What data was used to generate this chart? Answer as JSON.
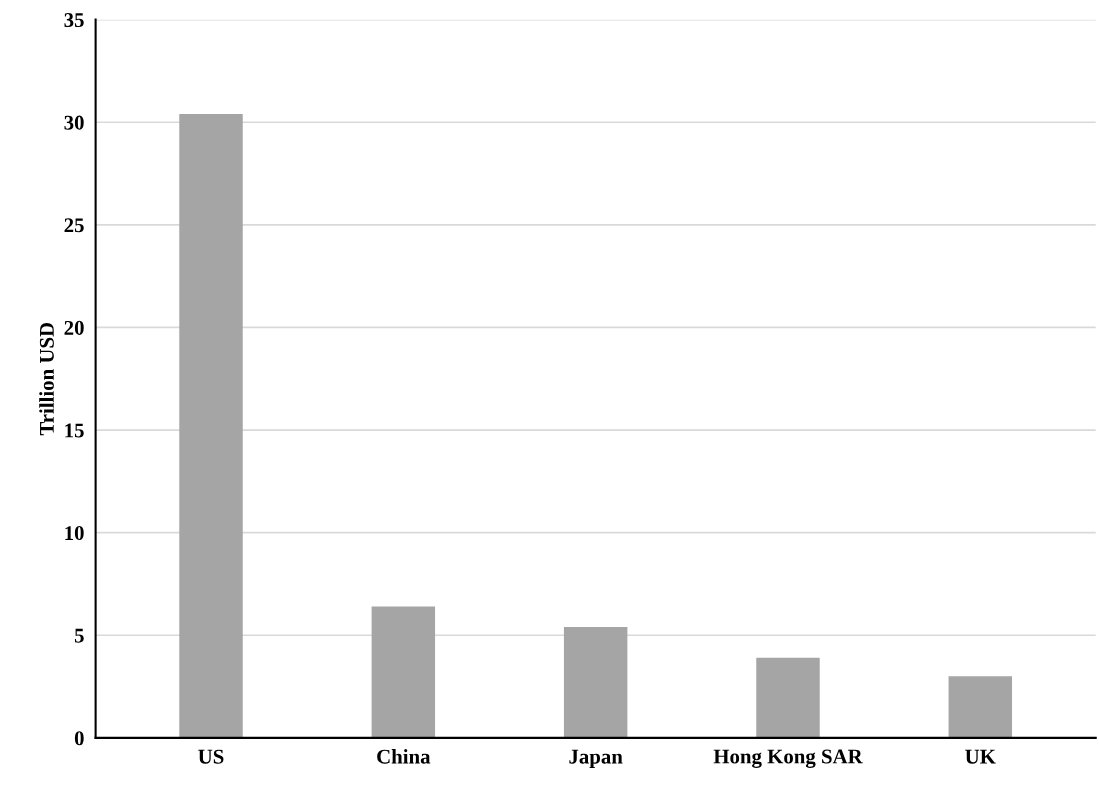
{
  "chart_data": {
    "type": "bar",
    "ylabel": "Trillion USD",
    "categories": [
      "US",
      "China",
      "Japan",
      "Hong Kong SAR",
      "UK"
    ],
    "values": [
      30.4,
      6.4,
      5.4,
      3.9,
      3.0
    ],
    "color": "#a5a5a5",
    "ylim": [
      0,
      35
    ],
    "yticks": [
      0,
      5,
      10,
      15,
      20,
      25,
      30,
      35
    ],
    "grid": "y"
  }
}
